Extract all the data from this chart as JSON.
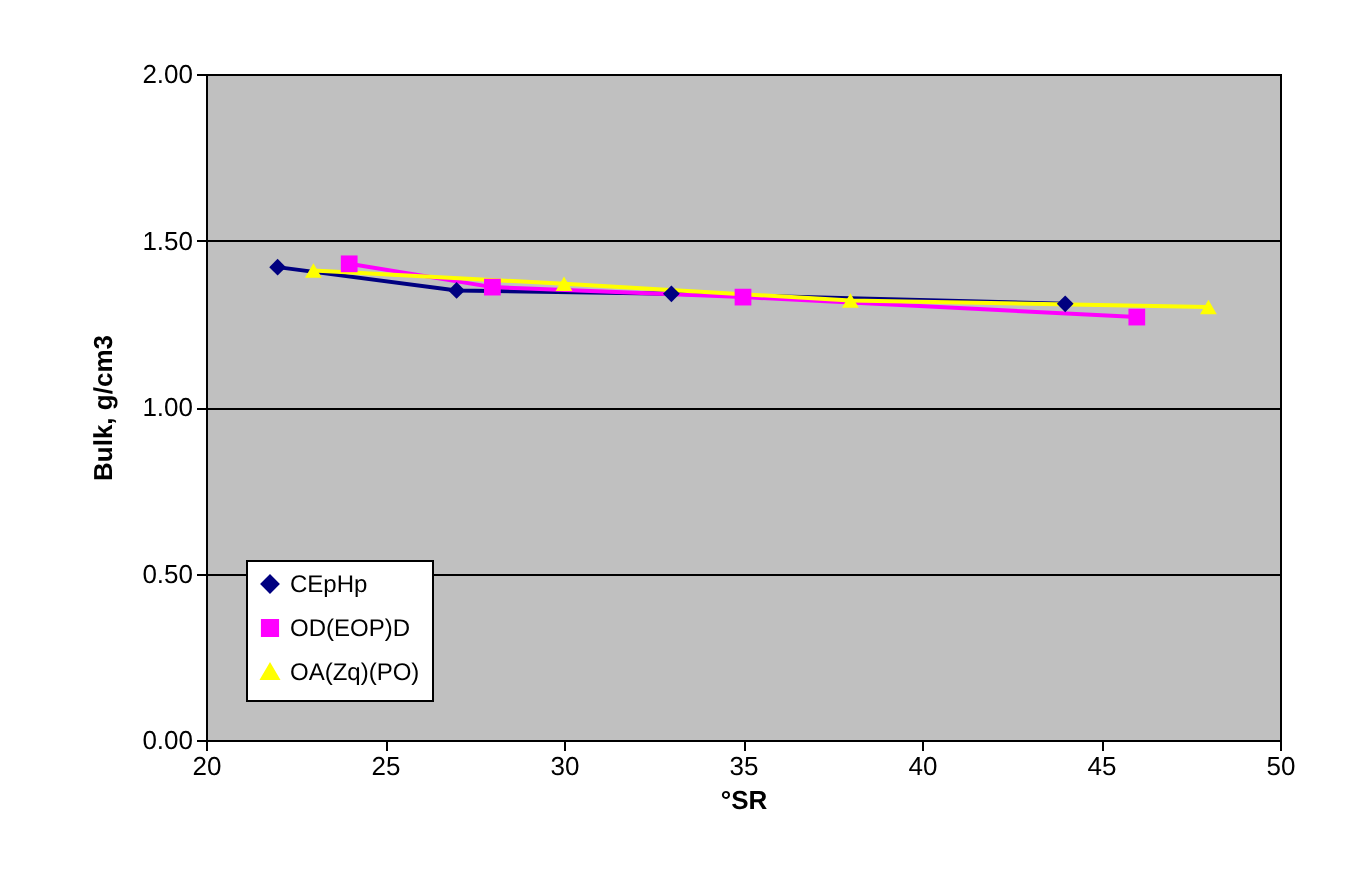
{
  "chart_data": {
    "type": "line",
    "xlabel": "°SR",
    "ylabel": "Bulk, g/cm3",
    "xlim": [
      20,
      50
    ],
    "xticks": [
      20,
      25,
      30,
      35,
      40,
      45,
      50
    ],
    "ylim": [
      0,
      2
    ],
    "yticks": [
      {
        "value": 0,
        "label": "0.00"
      },
      {
        "value": 0.5,
        "label": "0.50"
      },
      {
        "value": 1,
        "label": "1.00"
      },
      {
        "value": 1.5,
        "label": "1.50"
      },
      {
        "value": 2,
        "label": "2.00"
      }
    ],
    "grid": "y",
    "legend": "bottom left",
    "series": [
      {
        "name": "CEpHp",
        "color": "#000080",
        "marker": "diamond",
        "x": [
          22,
          27,
          33,
          44
        ],
        "values": [
          1.42,
          1.35,
          1.34,
          1.31
        ]
      },
      {
        "name": "OD(EOP)D",
        "color": "#ff00ff",
        "marker": "square",
        "x": [
          24,
          28,
          35,
          46
        ],
        "values": [
          1.43,
          1.36,
          1.33,
          1.27
        ]
      },
      {
        "name": "OA(Zq)(PO)",
        "color": "#ffff00",
        "marker": "triangle",
        "x": [
          23,
          30,
          38,
          48
        ],
        "values": [
          1.41,
          1.37,
          1.32,
          1.3
        ]
      }
    ]
  }
}
